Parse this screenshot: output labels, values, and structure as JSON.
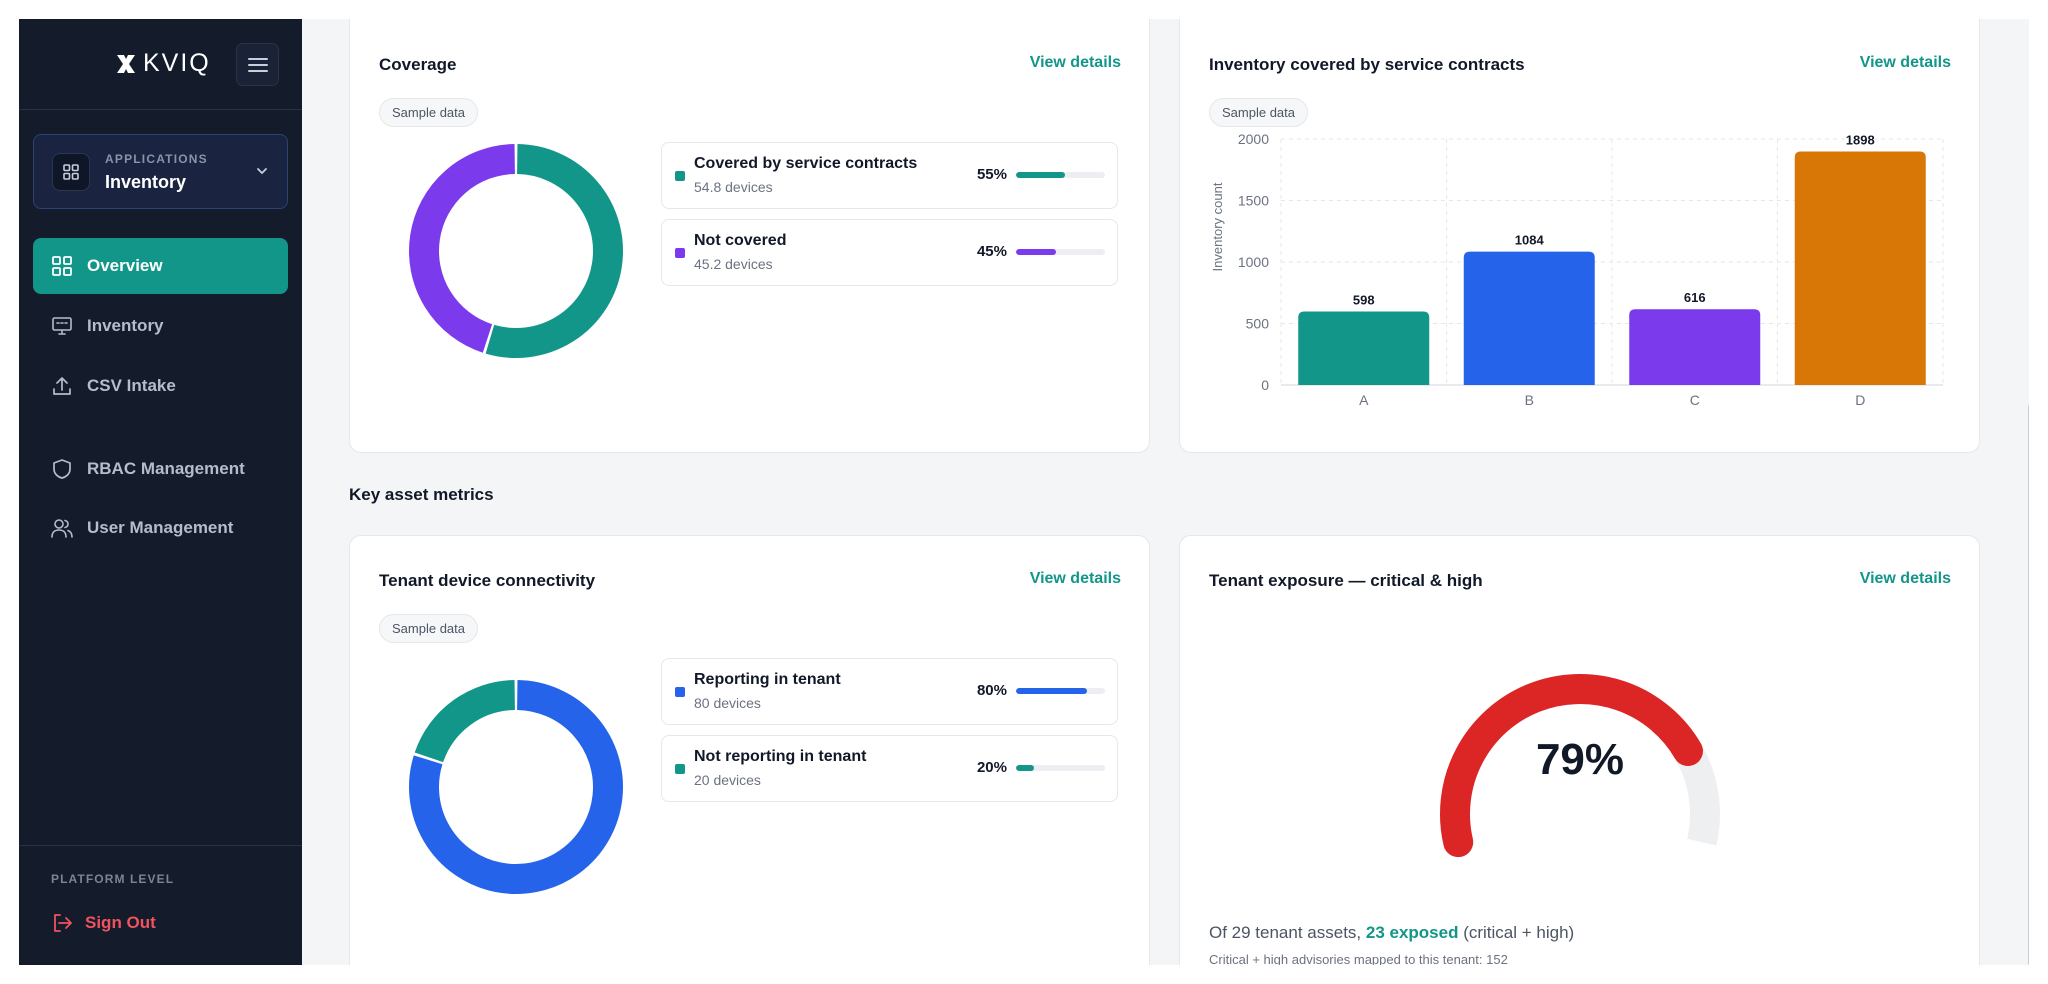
{
  "brand": {
    "name": "KVIQ"
  },
  "sidebar": {
    "app_switcher": {
      "caption": "APPLICATIONS",
      "name": "Inventory"
    },
    "items": [
      {
        "label": "Overview",
        "icon": "grid-icon",
        "active": true
      },
      {
        "label": "Inventory",
        "icon": "monitor-icon",
        "active": false
      },
      {
        "label": "CSV Intake",
        "icon": "upload-icon",
        "active": false
      },
      {
        "label": "RBAC Management",
        "icon": "shield-icon",
        "active": false
      },
      {
        "label": "User Management",
        "icon": "users-icon",
        "active": false
      }
    ],
    "platform_label": "PLATFORM LEVEL",
    "sign_out": "Sign Out"
  },
  "colors": {
    "teal": "#12968a",
    "purple": "#7c3aed",
    "blue": "#2563eb",
    "orange": "#d97706",
    "red": "#dc2626",
    "sidebar": "#141b2b"
  },
  "coverage": {
    "title": "Coverage",
    "view_details": "View details",
    "badge": "Sample data",
    "items": [
      {
        "label": "Covered by service contracts",
        "sub": "54.8 devices",
        "pct_label": "55%",
        "fraction": 0.548,
        "color": "#12968a"
      },
      {
        "label": "Not covered",
        "sub": "45.2 devices",
        "pct_label": "45%",
        "fraction": 0.452,
        "color": "#7c3aed"
      }
    ]
  },
  "inventory_chart": {
    "title": "Inventory covered by service contracts",
    "view_details": "View details",
    "badge": "Sample data"
  },
  "chart_data": {
    "type": "bar",
    "categories": [
      "A",
      "B",
      "C",
      "D"
    ],
    "values": [
      598,
      1084,
      616,
      1898
    ],
    "colors": [
      "#12968a",
      "#2563eb",
      "#7c3aed",
      "#d97706"
    ],
    "ylabel": "Inventory count",
    "xlabel": "",
    "ylim": [
      0,
      2000
    ],
    "yticks": [
      0,
      500,
      1000,
      1500,
      2000
    ],
    "grid": true,
    "data_labels": true
  },
  "key_metrics": {
    "title": "Key asset metrics"
  },
  "connectivity": {
    "title": "Tenant device connectivity",
    "view_details": "View details",
    "badge": "Sample data",
    "items": [
      {
        "label": "Reporting in tenant",
        "sub": "80 devices",
        "pct_label": "80%",
        "fraction": 0.8,
        "color": "#2563eb"
      },
      {
        "label": "Not reporting in tenant",
        "sub": "20 devices",
        "pct_label": "20%",
        "fraction": 0.2,
        "color": "#12968a"
      }
    ]
  },
  "exposure": {
    "title": "Tenant exposure — critical & high",
    "view_details": "View details",
    "gauge_value": 0.79,
    "gauge_label": "79%",
    "summary_prefix": "Of 29 tenant assets, ",
    "summary_highlight": "23 exposed",
    "summary_suffix": " (critical + high)",
    "sub_text": "Critical + high advisories mapped to this tenant: 152"
  }
}
